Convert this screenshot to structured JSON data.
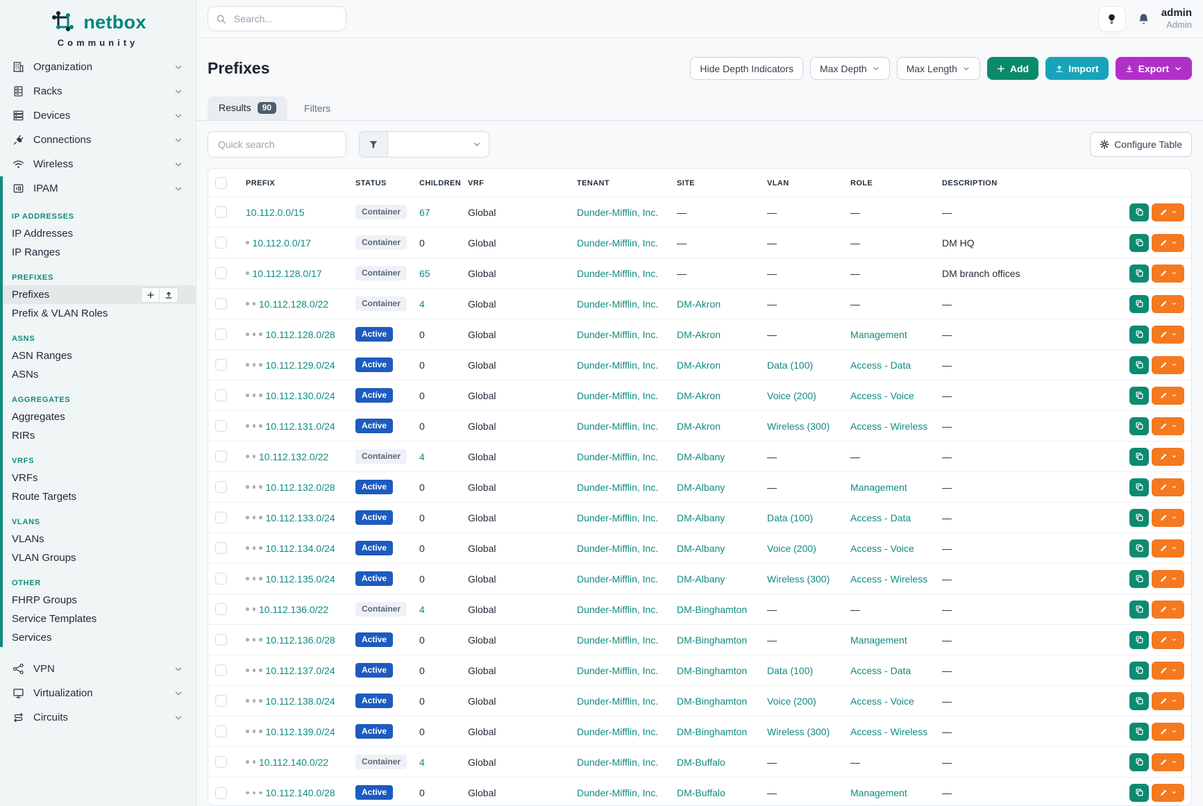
{
  "brand": {
    "name": "netbox",
    "edition": "Community"
  },
  "topbar": {
    "search_placeholder": "Search...",
    "username": "admin",
    "role": "Admin"
  },
  "colors": {
    "teal": "#0f8b80",
    "active_badge": "#1d5bbf",
    "add_green": "#0a8a6a",
    "import_cyan": "#17a3ba",
    "export_purple": "#b12fc9",
    "edit_orange": "#f5791f",
    "copy_teal": "#0d8a72"
  },
  "sidebar": {
    "items_above": [
      {
        "label": "Organization",
        "icon": "building-icon"
      },
      {
        "label": "Racks",
        "icon": "rack-icon"
      },
      {
        "label": "Devices",
        "icon": "server-icon"
      },
      {
        "label": "Connections",
        "icon": "plug-icon"
      },
      {
        "label": "Wireless",
        "icon": "wifi-icon"
      }
    ],
    "ipam": {
      "label": "IPAM",
      "icon": "ipam-icon"
    },
    "sections": [
      {
        "header": "IP ADDRESSES",
        "items": [
          {
            "label": "IP Addresses"
          },
          {
            "label": "IP Ranges"
          }
        ]
      },
      {
        "header": "PREFIXES",
        "items": [
          {
            "label": "Prefixes",
            "active": true
          },
          {
            "label": "Prefix & VLAN Roles"
          }
        ]
      },
      {
        "header": "ASNS",
        "items": [
          {
            "label": "ASN Ranges"
          },
          {
            "label": "ASNs"
          }
        ]
      },
      {
        "header": "AGGREGATES",
        "items": [
          {
            "label": "Aggregates"
          },
          {
            "label": "RIRs"
          }
        ]
      },
      {
        "header": "VRFS",
        "items": [
          {
            "label": "VRFs"
          },
          {
            "label": "Route Targets"
          }
        ]
      },
      {
        "header": "VLANS",
        "items": [
          {
            "label": "VLANs"
          },
          {
            "label": "VLAN Groups"
          }
        ]
      },
      {
        "header": "OTHER",
        "items": [
          {
            "label": "FHRP Groups"
          },
          {
            "label": "Service Templates"
          },
          {
            "label": "Services"
          }
        ]
      }
    ],
    "items_below": [
      {
        "label": "VPN",
        "icon": "vpn-icon"
      },
      {
        "label": "Virtualization",
        "icon": "monitor-icon"
      },
      {
        "label": "Circuits",
        "icon": "circuit-icon"
      }
    ]
  },
  "page": {
    "title": "Prefixes"
  },
  "toolbar": {
    "hide_depth": "Hide Depth Indicators",
    "max_depth": "Max Depth",
    "max_length": "Max Length",
    "add": "Add",
    "import": "Import",
    "export": "Export"
  },
  "tabs": {
    "results": "Results",
    "count": "90",
    "filters": "Filters"
  },
  "controls": {
    "quick_search_placeholder": "Quick search",
    "configure": "Configure Table"
  },
  "table": {
    "columns": [
      "PREFIX",
      "STATUS",
      "CHILDREN",
      "VRF",
      "TENANT",
      "SITE",
      "VLAN",
      "ROLE",
      "DESCRIPTION"
    ],
    "rows": [
      {
        "depth": 0,
        "prefix": "10.112.0.0/15",
        "status": "Container",
        "children": "67",
        "vrf": "Global",
        "tenant": "Dunder-Mifflin, Inc.",
        "site": "—",
        "vlan": "—",
        "role": "—",
        "description": "—"
      },
      {
        "depth": 1,
        "prefix": "10.112.0.0/17",
        "status": "Container",
        "children": "0",
        "vrf": "Global",
        "tenant": "Dunder-Mifflin, Inc.",
        "site": "—",
        "vlan": "—",
        "role": "—",
        "description": "DM HQ"
      },
      {
        "depth": 1,
        "prefix": "10.112.128.0/17",
        "status": "Container",
        "children": "65",
        "vrf": "Global",
        "tenant": "Dunder-Mifflin, Inc.",
        "site": "—",
        "vlan": "—",
        "role": "—",
        "description": "DM branch offices"
      },
      {
        "depth": 2,
        "prefix": "10.112.128.0/22",
        "status": "Container",
        "children": "4",
        "vrf": "Global",
        "tenant": "Dunder-Mifflin, Inc.",
        "site": "DM-Akron",
        "vlan": "—",
        "role": "—",
        "description": "—"
      },
      {
        "depth": 3,
        "prefix": "10.112.128.0/28",
        "status": "Active",
        "children": "0",
        "vrf": "Global",
        "tenant": "Dunder-Mifflin, Inc.",
        "site": "DM-Akron",
        "vlan": "—",
        "role": "Management",
        "description": "—"
      },
      {
        "depth": 3,
        "prefix": "10.112.129.0/24",
        "status": "Active",
        "children": "0",
        "vrf": "Global",
        "tenant": "Dunder-Mifflin, Inc.",
        "site": "DM-Akron",
        "vlan": "Data (100)",
        "role": "Access - Data",
        "description": "—"
      },
      {
        "depth": 3,
        "prefix": "10.112.130.0/24",
        "status": "Active",
        "children": "0",
        "vrf": "Global",
        "tenant": "Dunder-Mifflin, Inc.",
        "site": "DM-Akron",
        "vlan": "Voice (200)",
        "role": "Access - Voice",
        "description": "—"
      },
      {
        "depth": 3,
        "prefix": "10.112.131.0/24",
        "status": "Active",
        "children": "0",
        "vrf": "Global",
        "tenant": "Dunder-Mifflin, Inc.",
        "site": "DM-Akron",
        "vlan": "Wireless (300)",
        "role": "Access - Wireless",
        "description": "—"
      },
      {
        "depth": 2,
        "prefix": "10.112.132.0/22",
        "status": "Container",
        "children": "4",
        "vrf": "Global",
        "tenant": "Dunder-Mifflin, Inc.",
        "site": "DM-Albany",
        "vlan": "—",
        "role": "—",
        "description": "—"
      },
      {
        "depth": 3,
        "prefix": "10.112.132.0/28",
        "status": "Active",
        "children": "0",
        "vrf": "Global",
        "tenant": "Dunder-Mifflin, Inc.",
        "site": "DM-Albany",
        "vlan": "—",
        "role": "Management",
        "description": "—"
      },
      {
        "depth": 3,
        "prefix": "10.112.133.0/24",
        "status": "Active",
        "children": "0",
        "vrf": "Global",
        "tenant": "Dunder-Mifflin, Inc.",
        "site": "DM-Albany",
        "vlan": "Data (100)",
        "role": "Access - Data",
        "description": "—"
      },
      {
        "depth": 3,
        "prefix": "10.112.134.0/24",
        "status": "Active",
        "children": "0",
        "vrf": "Global",
        "tenant": "Dunder-Mifflin, Inc.",
        "site": "DM-Albany",
        "vlan": "Voice (200)",
        "role": "Access - Voice",
        "description": "—"
      },
      {
        "depth": 3,
        "prefix": "10.112.135.0/24",
        "status": "Active",
        "children": "0",
        "vrf": "Global",
        "tenant": "Dunder-Mifflin, Inc.",
        "site": "DM-Albany",
        "vlan": "Wireless (300)",
        "role": "Access - Wireless",
        "description": "—"
      },
      {
        "depth": 2,
        "prefix": "10.112.136.0/22",
        "status": "Container",
        "children": "4",
        "vrf": "Global",
        "tenant": "Dunder-Mifflin, Inc.",
        "site": "DM-Binghamton",
        "vlan": "—",
        "role": "—",
        "description": "—"
      },
      {
        "depth": 3,
        "prefix": "10.112.136.0/28",
        "status": "Active",
        "children": "0",
        "vrf": "Global",
        "tenant": "Dunder-Mifflin, Inc.",
        "site": "DM-Binghamton",
        "vlan": "—",
        "role": "Management",
        "description": "—"
      },
      {
        "depth": 3,
        "prefix": "10.112.137.0/24",
        "status": "Active",
        "children": "0",
        "vrf": "Global",
        "tenant": "Dunder-Mifflin, Inc.",
        "site": "DM-Binghamton",
        "vlan": "Data (100)",
        "role": "Access - Data",
        "description": "—"
      },
      {
        "depth": 3,
        "prefix": "10.112.138.0/24",
        "status": "Active",
        "children": "0",
        "vrf": "Global",
        "tenant": "Dunder-Mifflin, Inc.",
        "site": "DM-Binghamton",
        "vlan": "Voice (200)",
        "role": "Access - Voice",
        "description": "—"
      },
      {
        "depth": 3,
        "prefix": "10.112.139.0/24",
        "status": "Active",
        "children": "0",
        "vrf": "Global",
        "tenant": "Dunder-Mifflin, Inc.",
        "site": "DM-Binghamton",
        "vlan": "Wireless (300)",
        "role": "Access - Wireless",
        "description": "—"
      },
      {
        "depth": 2,
        "prefix": "10.112.140.0/22",
        "status": "Container",
        "children": "4",
        "vrf": "Global",
        "tenant": "Dunder-Mifflin, Inc.",
        "site": "DM-Buffalo",
        "vlan": "—",
        "role": "—",
        "description": "—"
      },
      {
        "depth": 3,
        "prefix": "10.112.140.0/28",
        "status": "Active",
        "children": "0",
        "vrf": "Global",
        "tenant": "Dunder-Mifflin, Inc.",
        "site": "DM-Buffalo",
        "vlan": "—",
        "role": "Management",
        "description": "—"
      }
    ]
  }
}
